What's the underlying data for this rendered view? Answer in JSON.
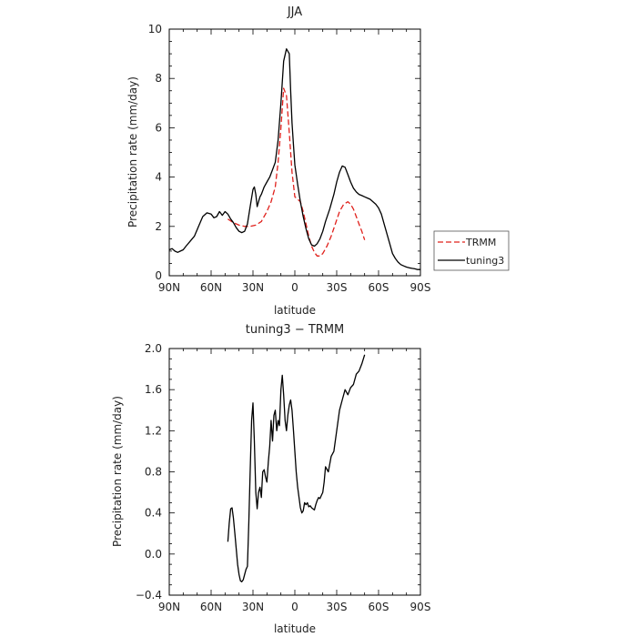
{
  "chart_data": [
    {
      "type": "line",
      "title": "JJA",
      "xlabel": "latitude",
      "ylabel": "Precipitation rate (mm/day)",
      "xticks": [
        "90N",
        "60N",
        "30N",
        "0",
        "30S",
        "60S",
        "90S"
      ],
      "xlim": [
        90,
        -90
      ],
      "ylim": [
        0,
        10
      ],
      "yticks": [
        "0",
        "2",
        "4",
        "6",
        "8",
        "10"
      ],
      "yticks_values": [
        0,
        2,
        4,
        6,
        8,
        10
      ],
      "legend_position": "right",
      "series": [
        {
          "name": "TRMM",
          "color": "#e0201b",
          "style": "dashed",
          "x": [
            48,
            44,
            40,
            36,
            32,
            28,
            24,
            20,
            17,
            14,
            12,
            10,
            8,
            6,
            4,
            2,
            0,
            -2,
            -4,
            -6,
            -8,
            -10,
            -12,
            -14,
            -16,
            -18,
            -20,
            -23,
            -26,
            -29,
            -32,
            -35,
            -38,
            -40,
            -42,
            -44,
            -46,
            -48,
            -50
          ],
          "y": [
            2.3,
            2.15,
            2.05,
            2.0,
            2.0,
            2.05,
            2.2,
            2.6,
            3.0,
            3.6,
            4.6,
            6.0,
            7.6,
            7.3,
            5.8,
            4.2,
            3.2,
            3.1,
            3.0,
            2.6,
            2.1,
            1.6,
            1.2,
            0.95,
            0.8,
            0.8,
            0.9,
            1.2,
            1.6,
            2.1,
            2.6,
            2.9,
            3.0,
            2.9,
            2.7,
            2.4,
            2.1,
            1.8,
            1.45
          ]
        },
        {
          "name": "tuning3",
          "color": "#000000",
          "style": "solid",
          "x": [
            90,
            88,
            86,
            84,
            82,
            80,
            78,
            75,
            72,
            69,
            66,
            63,
            60,
            58,
            56,
            54,
            52,
            50,
            48,
            46,
            44,
            42,
            40,
            38,
            36,
            34,
            32,
            30,
            29,
            28,
            27,
            26,
            25,
            24,
            22,
            20,
            18,
            16,
            14,
            12,
            10,
            8,
            6,
            4,
            3,
            2,
            1,
            0,
            -2,
            -4,
            -6,
            -8,
            -10,
            -12,
            -14,
            -16,
            -18,
            -20,
            -22,
            -25,
            -28,
            -30,
            -32,
            -34,
            -36,
            -38,
            -40,
            -42,
            -44,
            -46,
            -48,
            -50,
            -52,
            -54,
            -56,
            -58,
            -60,
            -62,
            -64,
            -66,
            -68,
            -70,
            -72,
            -74,
            -76,
            -78,
            -80,
            -82,
            -84,
            -86,
            -88,
            -90
          ],
          "y": [
            1.05,
            1.1,
            1.0,
            0.95,
            1.0,
            1.05,
            1.2,
            1.4,
            1.6,
            2.0,
            2.4,
            2.55,
            2.5,
            2.35,
            2.4,
            2.6,
            2.45,
            2.6,
            2.5,
            2.3,
            2.15,
            1.95,
            1.8,
            1.75,
            1.8,
            2.1,
            2.8,
            3.5,
            3.6,
            3.3,
            2.8,
            3.0,
            3.2,
            3.3,
            3.6,
            3.8,
            4.0,
            4.3,
            4.6,
            5.5,
            7.0,
            8.7,
            9.2,
            9.0,
            7.5,
            6.2,
            5.3,
            4.5,
            3.7,
            3.0,
            2.4,
            1.9,
            1.5,
            1.25,
            1.2,
            1.3,
            1.5,
            1.8,
            2.2,
            2.7,
            3.3,
            3.8,
            4.2,
            4.45,
            4.4,
            4.1,
            3.8,
            3.55,
            3.4,
            3.3,
            3.25,
            3.2,
            3.15,
            3.1,
            3.0,
            2.9,
            2.75,
            2.5,
            2.1,
            1.7,
            1.3,
            0.9,
            0.7,
            0.55,
            0.45,
            0.4,
            0.35,
            0.32,
            0.3,
            0.28,
            0.25,
            0.25
          ]
        }
      ]
    },
    {
      "type": "line",
      "title": "tuning3 − TRMM",
      "xlabel": "latitude",
      "ylabel": "Precipitation rate (mm/day)",
      "xticks": [
        "90N",
        "60N",
        "30N",
        "0",
        "30S",
        "60S",
        "90S"
      ],
      "xlim": [
        90,
        -90
      ],
      "ylim": [
        -0.4,
        2.0
      ],
      "yticks": [
        "−0.4",
        "0.0",
        "0.4",
        "0.8",
        "1.2",
        "1.6",
        "2.0"
      ],
      "yticks_values": [
        -0.4,
        0.0,
        0.4,
        0.8,
        1.2,
        1.6,
        2.0
      ],
      "series": [
        {
          "color": "#000000",
          "style": "solid",
          "x": [
            48,
            47,
            46,
            45,
            44,
            43,
            42,
            41,
            40,
            39,
            38,
            37,
            36,
            35,
            34,
            33,
            32,
            31,
            30,
            29,
            28,
            27,
            26,
            25,
            24,
            23,
            22,
            21,
            20,
            19,
            18,
            17,
            16,
            15,
            14,
            13,
            12,
            11,
            10,
            9,
            8,
            7,
            6,
            5,
            4,
            3,
            2,
            1,
            0,
            -1,
            -2,
            -3,
            -4,
            -5,
            -6,
            -7,
            -8,
            -9,
            -10,
            -11,
            -12,
            -13,
            -14,
            -15,
            -16,
            -17,
            -18,
            -19,
            -20,
            -21,
            -22,
            -24,
            -26,
            -28,
            -30,
            -32,
            -34,
            -36,
            -38,
            -40,
            -42,
            -44,
            -46,
            -48,
            -50
          ],
          "y": [
            0.12,
            0.3,
            0.44,
            0.45,
            0.35,
            0.2,
            0.05,
            -0.1,
            -0.2,
            -0.26,
            -0.27,
            -0.25,
            -0.2,
            -0.15,
            -0.12,
            0.3,
            0.8,
            1.3,
            1.47,
            1.1,
            0.6,
            0.44,
            0.6,
            0.65,
            0.55,
            0.8,
            0.82,
            0.75,
            0.7,
            0.9,
            1.05,
            1.3,
            1.1,
            1.35,
            1.4,
            1.2,
            1.3,
            1.25,
            1.6,
            1.74,
            1.55,
            1.3,
            1.2,
            1.35,
            1.45,
            1.5,
            1.4,
            1.2,
            1.0,
            0.8,
            0.65,
            0.55,
            0.45,
            0.4,
            0.42,
            0.5,
            0.48,
            0.5,
            0.46,
            0.47,
            0.45,
            0.44,
            0.43,
            0.48,
            0.52,
            0.55,
            0.54,
            0.57,
            0.6,
            0.7,
            0.85,
            0.8,
            0.95,
            1.0,
            1.2,
            1.4,
            1.5,
            1.6,
            1.55,
            1.62,
            1.65,
            1.75,
            1.78,
            1.85,
            1.94
          ]
        }
      ]
    }
  ]
}
